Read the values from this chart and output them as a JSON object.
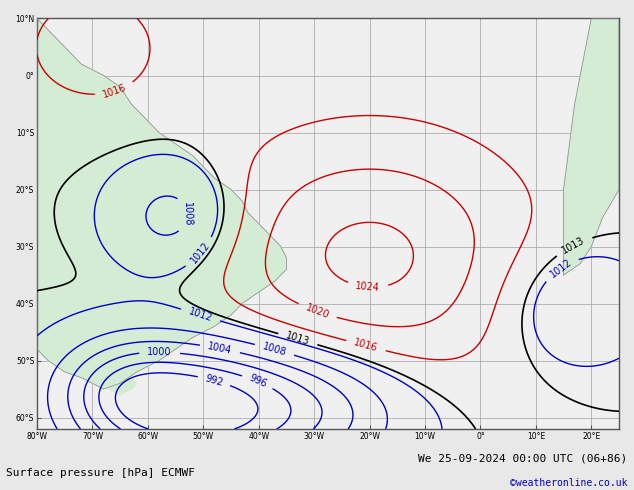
{
  "title_left": "Surface pressure [hPa] ECMWF",
  "title_right": "We 25-09-2024 00:00 UTC (06+86)",
  "copyright": "©weatheronline.co.uk",
  "background_map": "#d4ecd4",
  "background_ocean": "#f0f0f0",
  "grid_color": "#a0a0a0",
  "contour_color_black": "#000000",
  "contour_color_red": "#cc0000",
  "contour_color_blue": "#0000cc",
  "label_fontsize": 7,
  "title_fontsize": 8,
  "copyright_fontsize": 7,
  "figsize": [
    6.34,
    4.9
  ],
  "dpi": 100
}
